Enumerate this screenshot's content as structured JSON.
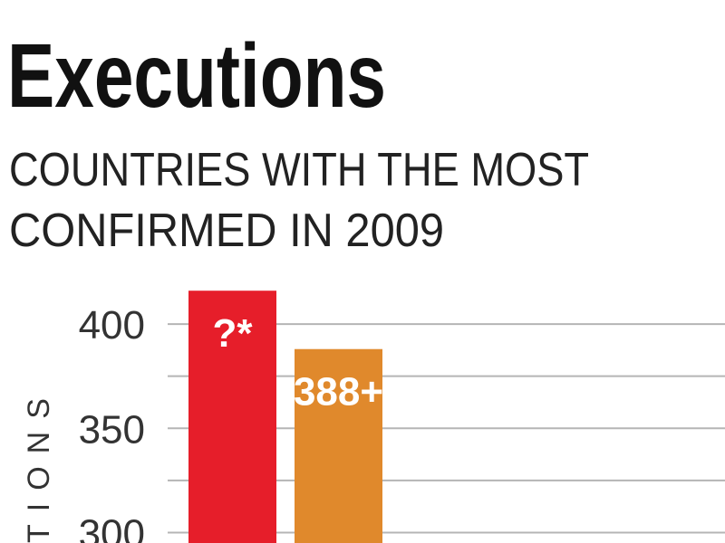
{
  "chart_data": {
    "type": "bar",
    "title": "Executions",
    "subtitle": [
      "COUNTRIES WITH THE MOST",
      "CONFIRMED IN 2009"
    ],
    "y_label": "TIONS",
    "values": [
      416,
      388
    ],
    "value_labels": [
      "?*",
      "388+"
    ],
    "colors": [
      "#e61e2a",
      "#e0892c"
    ],
    "ylim": [
      295,
      420
    ],
    "yticks": [
      300,
      350,
      400
    ],
    "grid_lines": [
      300,
      325,
      350,
      375,
      400
    ],
    "grid": true
  }
}
